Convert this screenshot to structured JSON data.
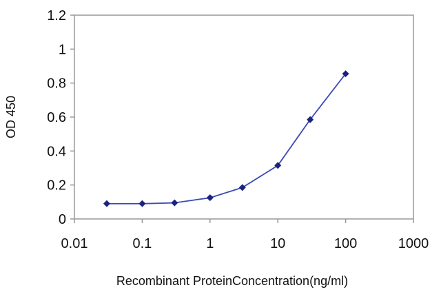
{
  "chart_data": {
    "type": "line",
    "title": "",
    "xlabel": "Recombinant ProteinConcentration(ng/ml)",
    "ylabel": "OD 450",
    "x_scale": "log",
    "xlim": [
      0.01,
      1000
    ],
    "ylim": [
      0,
      1.2
    ],
    "x_ticks": [
      0.01,
      0.1,
      1,
      10,
      100,
      1000
    ],
    "x_tick_labels": [
      "0.01",
      "0.1",
      "1",
      "10",
      "100",
      "1000"
    ],
    "y_ticks": [
      0,
      0.2,
      0.4,
      0.6,
      0.8,
      1,
      1.2
    ],
    "y_tick_labels": [
      "0",
      "0.2",
      "0.4",
      "0.6",
      "0.8",
      "1",
      "1.2"
    ],
    "grid": false,
    "legend": "none",
    "line_color": "#3b4bb5",
    "marker_color": "#1a237e",
    "frame_color": "#999999",
    "series": [
      {
        "x": [
          0.03,
          0.1,
          0.3,
          1,
          3,
          10,
          30,
          100
        ],
        "y": [
          0.09,
          0.09,
          0.095,
          0.125,
          0.185,
          0.315,
          0.585,
          0.855
        ]
      }
    ]
  }
}
